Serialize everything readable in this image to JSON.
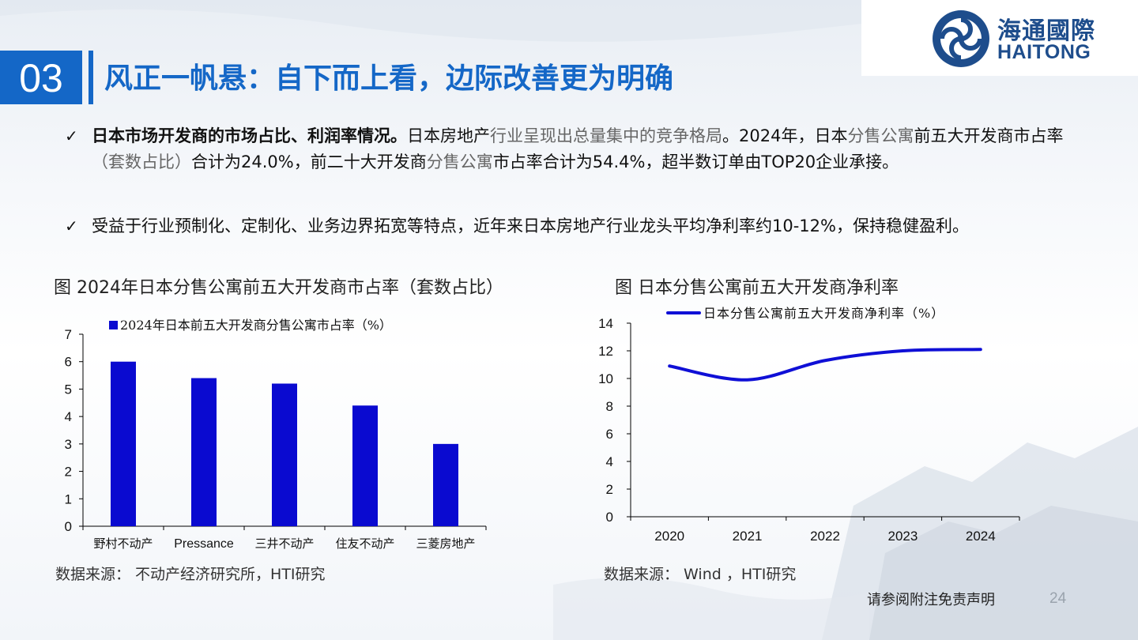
{
  "logo": {
    "cn": "海通國際",
    "en": "HAITONG"
  },
  "section": {
    "number": "03",
    "title": "风正一帆悬：自下而上看，边际改善更为明确"
  },
  "bullets": [
    {
      "check": "✓",
      "bold": "日本市场开发商的市场占比、利润率情况。",
      "segments": [
        {
          "text": "日本房地产",
          "grey": false
        },
        {
          "text": "行业呈现出总量集中的竞争格局",
          "grey": true
        },
        {
          "text": "。2024年，日本",
          "grey": false
        },
        {
          "text": "分售公寓",
          "grey": true
        },
        {
          "text": "前五大开发商市占率",
          "grey": false
        },
        {
          "text": "（套数占比）",
          "grey": true
        },
        {
          "text": "合计为24.0%，前二十大开发商",
          "grey": false
        },
        {
          "text": "分售公寓",
          "grey": true
        },
        {
          "text": "市占率合计为54.4%，超半数订单由TOP20企业承接。",
          "grey": false
        }
      ]
    },
    {
      "check": "✓",
      "text": "受益于行业预制化、定制化、业务边界拓宽等特点，近年来日本房地产行业龙头平均净利率约10-12%，保持稳健盈利。"
    }
  ],
  "figure_left": {
    "title": "图  2024年日本分售公寓前五大开发商市占率（套数占比）",
    "source": "数据来源： 不动产经济研究所，HTI研究"
  },
  "figure_right": {
    "title": "图  日本分售公寓前五大开发商净利率",
    "source": "数据来源： Wind ，HTI研究"
  },
  "footer": {
    "note": "请参阅附注免责声明",
    "page": "24"
  },
  "colors": {
    "brand_blue": "#1467c7",
    "bar_blue": "#0a0ad0",
    "line_blue": "#0f0fd6",
    "logo_blue": "#1e4d8c"
  },
  "chart_data": [
    {
      "type": "bar",
      "categories": [
        "野村不动产",
        "Pressance",
        "三井不动产",
        "住友不动产",
        "三菱房地产"
      ],
      "series": [
        {
          "name": "2024年日本前五大开发商分售公寓市占率（%）",
          "values": [
            6.0,
            5.4,
            5.2,
            4.4,
            3.0
          ]
        }
      ],
      "ylim": [
        0,
        7
      ],
      "yticks": [
        0,
        1,
        2,
        3,
        4,
        5,
        6,
        7
      ],
      "legend": "top"
    },
    {
      "type": "line",
      "x": [
        "2020",
        "2021",
        "2022",
        "2023",
        "2024"
      ],
      "series": [
        {
          "name": "日本分售公寓前五大开发商净利率（%）",
          "values": [
            10.9,
            9.9,
            11.3,
            12.0,
            12.1
          ]
        }
      ],
      "ylim": [
        0,
        14
      ],
      "yticks": [
        0,
        2,
        4,
        6,
        8,
        10,
        12,
        14
      ],
      "legend": "top"
    }
  ]
}
